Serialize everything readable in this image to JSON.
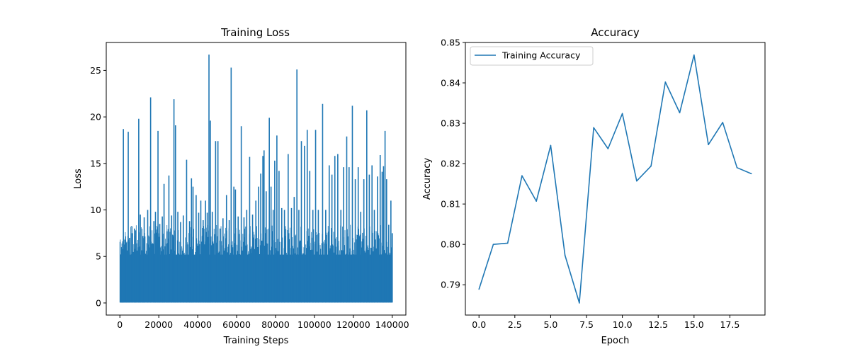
{
  "chart_data": [
    {
      "type": "line",
      "title": "Training Loss",
      "xlabel": "Training Steps",
      "ylabel": "Loss",
      "xlim": [
        -7000,
        147000
      ],
      "ylim": [
        -1.3,
        28.0
      ],
      "x_ticks": [
        0,
        20000,
        40000,
        60000,
        80000,
        100000,
        120000,
        140000
      ],
      "x_tick_labels": [
        "0",
        "20000",
        "40000",
        "60000",
        "80000",
        "100000",
        "120000",
        "140000"
      ],
      "y_ticks": [
        0,
        5,
        10,
        15,
        20,
        25
      ],
      "y_tick_labels": [
        "0",
        "5",
        "10",
        "15",
        "20",
        "25"
      ],
      "x_range": [
        0,
        140000
      ],
      "noise_band": [
        0.05,
        5.2
      ],
      "spikes": [
        [
          400,
          4.5
        ],
        [
          900,
          6.0
        ],
        [
          1300,
          5.8
        ],
        [
          1800,
          18.7
        ],
        [
          2600,
          6.8
        ],
        [
          3400,
          6.5
        ],
        [
          4300,
          18.4
        ],
        [
          5000,
          7.0
        ],
        [
          6300,
          7.5
        ],
        [
          7500,
          8.0
        ],
        [
          8200,
          7.8
        ],
        [
          9700,
          19.8
        ],
        [
          10500,
          9.5
        ],
        [
          11800,
          7.2
        ],
        [
          12500,
          9.2
        ],
        [
          14300,
          10.0
        ],
        [
          15800,
          22.1
        ],
        [
          17500,
          8.8
        ],
        [
          18300,
          9.8
        ],
        [
          19600,
          18.5
        ],
        [
          20500,
          8.5
        ],
        [
          21800,
          9.3
        ],
        [
          22700,
          12.8
        ],
        [
          24200,
          7.7
        ],
        [
          25200,
          13.7
        ],
        [
          26600,
          9.4
        ],
        [
          27800,
          21.9
        ],
        [
          28600,
          19.1
        ],
        [
          29800,
          9.8
        ],
        [
          31200,
          8.7
        ],
        [
          32600,
          9.4
        ],
        [
          34300,
          15.4
        ],
        [
          35800,
          8.8
        ],
        [
          36800,
          13.4
        ],
        [
          37600,
          12.5
        ],
        [
          39200,
          11.6
        ],
        [
          40500,
          9.7
        ],
        [
          41600,
          11.0
        ],
        [
          42800,
          8.9
        ],
        [
          44000,
          11.0
        ],
        [
          44900,
          9.7
        ],
        [
          45800,
          26.7
        ],
        [
          46500,
          19.6
        ],
        [
          47500,
          9.8
        ],
        [
          49200,
          17.4
        ],
        [
          50400,
          17.4
        ],
        [
          51500,
          8.0
        ],
        [
          53000,
          9.1
        ],
        [
          54800,
          11.6
        ],
        [
          56200,
          8.9
        ],
        [
          57200,
          25.3
        ],
        [
          58600,
          12.5
        ],
        [
          59400,
          12.2
        ],
        [
          60800,
          9.3
        ],
        [
          62400,
          19.0
        ],
        [
          63800,
          9.2
        ],
        [
          65200,
          10.0
        ],
        [
          66700,
          15.7
        ],
        [
          68200,
          9.5
        ],
        [
          69900,
          11.0
        ],
        [
          71300,
          12.5
        ],
        [
          72400,
          13.9
        ],
        [
          73500,
          15.8
        ],
        [
          74100,
          16.4
        ],
        [
          75200,
          12.0
        ],
        [
          76800,
          19.9
        ],
        [
          77700,
          12.5
        ],
        [
          78800,
          10.0
        ],
        [
          79600,
          15.3
        ],
        [
          80700,
          18.0
        ],
        [
          81800,
          14.2
        ],
        [
          83200,
          10.2
        ],
        [
          84600,
          10.0
        ],
        [
          86500,
          16.0
        ],
        [
          88200,
          10.2
        ],
        [
          89600,
          11.4
        ],
        [
          91000,
          25.1
        ],
        [
          92000,
          10.0
        ],
        [
          93300,
          17.4
        ],
        [
          94900,
          16.9
        ],
        [
          96300,
          18.6
        ],
        [
          97600,
          14.2
        ],
        [
          99200,
          10.0
        ],
        [
          100600,
          18.6
        ],
        [
          102000,
          10.0
        ],
        [
          104200,
          21.4
        ],
        [
          105800,
          10.0
        ],
        [
          107600,
          14.8
        ],
        [
          109000,
          13.8
        ],
        [
          110500,
          15.8
        ],
        [
          112000,
          16.0
        ],
        [
          113600,
          10.0
        ],
        [
          115000,
          14.6
        ],
        [
          116600,
          17.9
        ],
        [
          117800,
          14.6
        ],
        [
          119500,
          21.2
        ],
        [
          121000,
          13.3
        ],
        [
          122500,
          14.6
        ],
        [
          123800,
          9.8
        ],
        [
          125400,
          13.3
        ],
        [
          126900,
          20.7
        ],
        [
          128200,
          13.8
        ],
        [
          129600,
          14.8
        ],
        [
          130800,
          10.0
        ],
        [
          132400,
          13.6
        ],
        [
          133800,
          15.9
        ],
        [
          134800,
          14.1
        ],
        [
          135500,
          14.7
        ],
        [
          136300,
          18.5
        ],
        [
          137100,
          13.3
        ],
        [
          138200,
          8.4
        ],
        [
          139300,
          11.0
        ],
        [
          140000,
          7.5
        ]
      ]
    },
    {
      "type": "line",
      "title": "Accuracy",
      "xlabel": "Epoch",
      "ylabel": "Accuracy",
      "xlim": [
        -0.95,
        19.95
      ],
      "ylim": [
        0.7825,
        0.85
      ],
      "x_ticks": [
        0,
        2.5,
        5,
        7.5,
        10,
        12.5,
        15,
        17.5
      ],
      "x_tick_labels": [
        "0.0",
        "2.5",
        "5.0",
        "7.5",
        "10.0",
        "12.5",
        "15.0",
        "17.5"
      ],
      "y_ticks": [
        0.79,
        0.8,
        0.81,
        0.82,
        0.83,
        0.84,
        0.85
      ],
      "y_tick_labels": [
        "0.79",
        "0.80",
        "0.81",
        "0.82",
        "0.83",
        "0.84",
        "0.85"
      ],
      "legend_position": "upper-left",
      "series": [
        {
          "name": "Training Accuracy",
          "color": "#1f77b4",
          "x": [
            0,
            1,
            2,
            3,
            4,
            5,
            6,
            7,
            8,
            9,
            10,
            11,
            12,
            13,
            14,
            15,
            16,
            17,
            18,
            19
          ],
          "values": [
            0.7889,
            0.8,
            0.8003,
            0.817,
            0.8107,
            0.8245,
            0.7973,
            0.7855,
            0.8289,
            0.8237,
            0.8324,
            0.8157,
            0.8194,
            0.8402,
            0.8326,
            0.8469,
            0.8247,
            0.8302,
            0.819,
            0.8175
          ]
        }
      ]
    }
  ],
  "colors": {
    "series": "#1f77b4"
  }
}
